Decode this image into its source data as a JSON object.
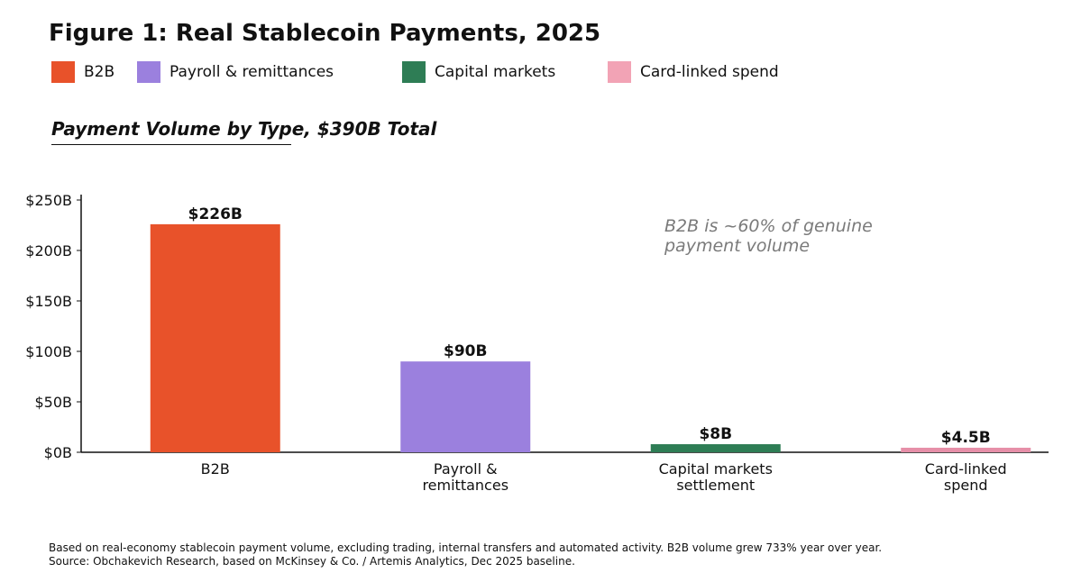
{
  "title": "Figure 1: Real Stablecoin Payments, 2025",
  "legend": [
    {
      "label": "B2B",
      "color": "#E8522A"
    },
    {
      "label": "Payroll & remittances",
      "color": "#9B80DE"
    },
    {
      "label": "Capital markets",
      "color": "#2E7D55"
    },
    {
      "label": "Card-linked spend",
      "color": "#F2A3B5"
    }
  ],
  "subtitle": "Payment Volume by Type, $390B Total",
  "chart_data": {
    "type": "bar",
    "categories": [
      [
        "B2B"
      ],
      [
        "Payroll &",
        "remittances"
      ],
      [
        "Capital markets",
        "settlement"
      ],
      [
        "Card-linked",
        "spend"
      ]
    ],
    "values": [
      226,
      90,
      8,
      4.5
    ],
    "data_labels": [
      "$226B",
      "$90B",
      "$8B",
      "$4.5B"
    ],
    "colors": [
      "#E8522A",
      "#9B80DE",
      "#2E7D55",
      "#E68FA8"
    ],
    "ylim": [
      0,
      250
    ],
    "yticks": [
      0,
      50,
      100,
      150,
      200,
      250
    ],
    "ytick_labels": [
      "$0B",
      "$50B",
      "$100B",
      "$150B",
      "$200B",
      "$250B"
    ],
    "annotation": [
      "B2B is ~60% of genuine",
      "payment volume"
    ],
    "grid": false,
    "legend_position": "top-left"
  },
  "footnote": [
    "Based on real-economy stablecoin payment volume, excluding trading, internal transfers and automated activity. B2B volume grew 733% year over year.",
    "Source: Obchakevich Research, based on McKinsey & Co. / Artemis Analytics, Dec 2025 baseline."
  ]
}
